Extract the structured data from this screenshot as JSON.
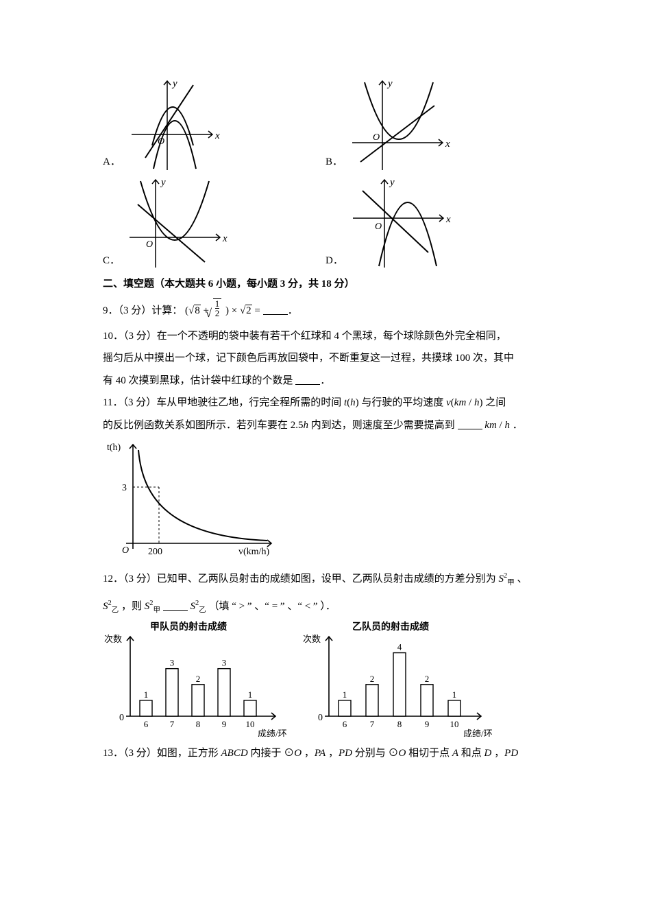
{
  "options_top": {
    "A": {
      "label": "A．",
      "axes": {
        "x_label": "x",
        "y_label": "y",
        "origin": "O"
      }
    },
    "B": {
      "label": "B．",
      "axes": {
        "x_label": "x",
        "y_label": "y",
        "origin": "O"
      }
    },
    "C": {
      "label": "C．",
      "axes": {
        "x_label": "x",
        "y_label": "y",
        "origin": "O"
      }
    },
    "D": {
      "label": "D．",
      "axes": {
        "x_label": "x",
        "y_label": "y",
        "origin": "O"
      }
    }
  },
  "section2": {
    "title": "二、填空题（本大题共 6 小题，每小题 3 分，共 18 分）"
  },
  "q9": {
    "prefix": "9．（3 分）计算：",
    "expr_plain": "(√8 + √(1/2)) × √2 =",
    "blank_suffix": "．"
  },
  "q10": {
    "text_a": "10．（3 分）在一个不透明的袋中装有若干个红球和 4 个黑球，每个球除颜色外完全相同，",
    "text_b": "摇匀后从中摸出一个球，记下颜色后再放回袋中，不断重复这一过程，共摸球 100 次，其中",
    "text_c_prefix": "有 40 次摸到黑球，估计袋中红球的个数是 ",
    "text_c_suffix": "．"
  },
  "q11": {
    "line1": "11．（3 分）车从甲地驶往乙地，行完全程所需的时间 t(h) 与行驶的平均速度 v(km / h) 之间",
    "line2_prefix": "的反比例函数关系如图所示．若列车要在 2.5h 内到达，则速度至少需要提高到 ",
    "line2_suffix": " km / h ．",
    "graph": {
      "y_label": "t(h)",
      "x_label": "v(km/h)",
      "origin": "O",
      "y_tick": "3",
      "x_tick": "200",
      "curve_color": "#000000"
    }
  },
  "q12": {
    "line1_a": "12．（3 分）已知甲、乙两队员射击的成绩如图，设甲、乙两队员射击成绩的方差分别为 ",
    "s_jia": "S",
    "s_jia_sub": "甲",
    "s_sup": "2",
    "sep": " 、",
    "line2_a": " ，则 ",
    "line2_b": "（填 “ > ” 、“  = ” 、“  < ”  ）．",
    "chart_jia": {
      "title": "甲队员的射击成绩",
      "y_label": "次数",
      "x_label": "成绩/环",
      "categories": [
        "6",
        "7",
        "8",
        "9",
        "10"
      ],
      "values": [
        1,
        3,
        2,
        3,
        1
      ],
      "y_zero": "0",
      "bar_fill": "#ffffff",
      "bar_stroke": "#000000",
      "y_max": 4.5,
      "label_fontsize": 12
    },
    "chart_yi": {
      "title": "乙队员的射击成绩",
      "y_label": "次数",
      "x_label": "成绩/环",
      "categories": [
        "6",
        "7",
        "8",
        "9",
        "10"
      ],
      "values": [
        1,
        2,
        4,
        2,
        1
      ],
      "y_zero": "0",
      "bar_fill": "#ffffff",
      "bar_stroke": "#000000",
      "y_max": 4.5,
      "label_fontsize": 12
    }
  },
  "q13": {
    "text": "13．（3 分）如图，正方形 ABCD 内接于 ⊙O ，PA ，PD 分别与 ⊙O 相切于点 A 和点 D ，PD"
  },
  "style": {
    "background_color": "#ffffff",
    "text_color": "#000000",
    "stroke_color": "#000000",
    "font_size_body": 15,
    "font_size_axis": 13
  }
}
